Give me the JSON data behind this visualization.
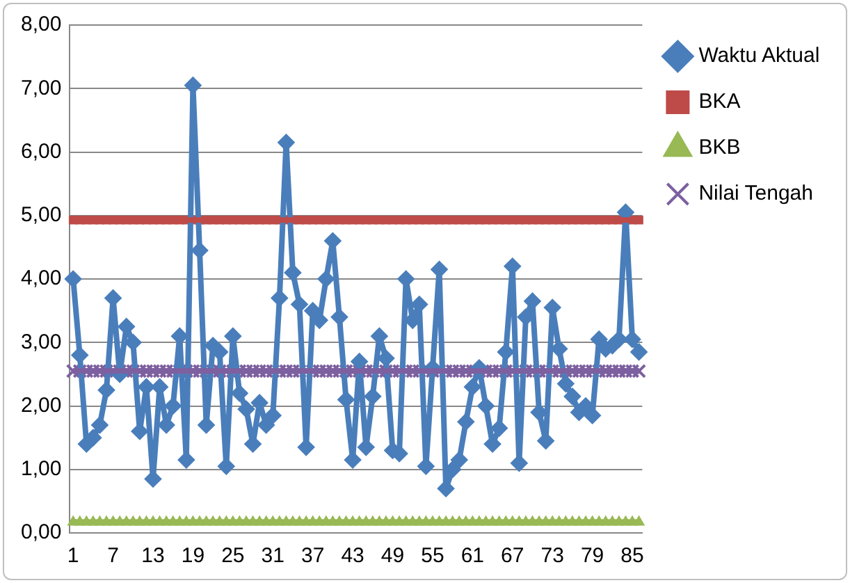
{
  "chart_data": {
    "type": "line",
    "categories": [
      "1",
      null,
      null,
      null,
      null,
      null,
      "7",
      null,
      null,
      null,
      null,
      null,
      "13",
      null,
      null,
      null,
      null,
      null,
      "19",
      null,
      null,
      null,
      null,
      null,
      "25",
      null,
      null,
      null,
      null,
      null,
      "31",
      null,
      null,
      null,
      null,
      null,
      "37",
      null,
      null,
      null,
      null,
      null,
      "43",
      null,
      null,
      null,
      null,
      null,
      "49",
      null,
      null,
      null,
      null,
      null,
      "55",
      null,
      null,
      null,
      null,
      null,
      "61",
      null,
      null,
      null,
      null,
      null,
      "67",
      null,
      null,
      null,
      null,
      null,
      "73",
      null,
      null,
      null,
      null,
      null,
      "79",
      null,
      null,
      null,
      null,
      null,
      "85",
      null
    ],
    "series": [
      {
        "name": "Waktu Aktual",
        "color": "#4a7ebb",
        "marker": "diamond",
        "values": [
          4.0,
          2.8,
          1.4,
          1.5,
          1.7,
          2.25,
          3.7,
          2.5,
          3.25,
          3.0,
          1.6,
          2.3,
          0.85,
          2.3,
          1.7,
          2.0,
          3.1,
          1.15,
          7.05,
          4.45,
          1.7,
          2.95,
          2.85,
          1.05,
          3.1,
          2.2,
          1.95,
          1.4,
          2.05,
          1.7,
          1.85,
          3.7,
          6.15,
          4.1,
          3.6,
          1.35,
          3.5,
          3.35,
          4.0,
          4.6,
          3.4,
          2.1,
          1.15,
          2.7,
          1.35,
          2.15,
          3.1,
          2.75,
          1.3,
          1.25,
          4.0,
          3.35,
          3.6,
          1.05,
          2.6,
          4.15,
          0.7,
          1.0,
          1.15,
          1.75,
          2.3,
          2.6,
          2.0,
          1.4,
          1.65,
          2.85,
          4.2,
          1.1,
          3.4,
          3.65,
          1.9,
          1.45,
          3.55,
          2.9,
          2.35,
          2.15,
          1.9,
          2.0,
          1.85,
          3.05,
          2.9,
          2.95,
          3.05,
          5.05,
          3.05,
          2.85
        ]
      },
      {
        "name": "BKA",
        "color": "#be4b48",
        "marker": "square",
        "values": [
          4.93,
          4.93,
          4.93,
          4.93,
          4.93,
          4.93,
          4.93,
          4.93,
          4.93,
          4.93,
          4.93,
          4.93,
          4.93,
          4.93,
          4.93,
          4.93,
          4.93,
          4.93,
          4.93,
          4.93,
          4.93,
          4.93,
          4.93,
          4.93,
          4.93,
          4.93,
          4.93,
          4.93,
          4.93,
          4.93,
          4.93,
          4.93,
          4.93,
          4.93,
          4.93,
          4.93,
          4.93,
          4.93,
          4.93,
          4.93,
          4.93,
          4.93,
          4.93,
          4.93,
          4.93,
          4.93,
          4.93,
          4.93,
          4.93,
          4.93,
          4.93,
          4.93,
          4.93,
          4.93,
          4.93,
          4.93,
          4.93,
          4.93,
          4.93,
          4.93,
          4.93,
          4.93,
          4.93,
          4.93,
          4.93,
          4.93,
          4.93,
          4.93,
          4.93,
          4.93,
          4.93,
          4.93,
          4.93,
          4.93,
          4.93,
          4.93,
          4.93,
          4.93,
          4.93,
          4.93,
          4.93,
          4.93,
          4.93,
          4.93,
          4.93,
          4.93
        ]
      },
      {
        "name": "BKB",
        "color": "#98b954",
        "marker": "triangle",
        "values": [
          0.17,
          0.17,
          0.17,
          0.17,
          0.17,
          0.17,
          0.17,
          0.17,
          0.17,
          0.17,
          0.17,
          0.17,
          0.17,
          0.17,
          0.17,
          0.17,
          0.17,
          0.17,
          0.17,
          0.17,
          0.17,
          0.17,
          0.17,
          0.17,
          0.17,
          0.17,
          0.17,
          0.17,
          0.17,
          0.17,
          0.17,
          0.17,
          0.17,
          0.17,
          0.17,
          0.17,
          0.17,
          0.17,
          0.17,
          0.17,
          0.17,
          0.17,
          0.17,
          0.17,
          0.17,
          0.17,
          0.17,
          0.17,
          0.17,
          0.17,
          0.17,
          0.17,
          0.17,
          0.17,
          0.17,
          0.17,
          0.17,
          0.17,
          0.17,
          0.17,
          0.17,
          0.17,
          0.17,
          0.17,
          0.17,
          0.17,
          0.17,
          0.17,
          0.17,
          0.17,
          0.17,
          0.17,
          0.17,
          0.17,
          0.17,
          0.17,
          0.17,
          0.17,
          0.17,
          0.17,
          0.17,
          0.17,
          0.17,
          0.17,
          0.17,
          0.17
        ]
      },
      {
        "name": "Nilai Tengah",
        "color": "#7d60a0",
        "marker": "cross",
        "values": [
          2.55,
          2.55,
          2.55,
          2.55,
          2.55,
          2.55,
          2.55,
          2.55,
          2.55,
          2.55,
          2.55,
          2.55,
          2.55,
          2.55,
          2.55,
          2.55,
          2.55,
          2.55,
          2.55,
          2.55,
          2.55,
          2.55,
          2.55,
          2.55,
          2.55,
          2.55,
          2.55,
          2.55,
          2.55,
          2.55,
          2.55,
          2.55,
          2.55,
          2.55,
          2.55,
          2.55,
          2.55,
          2.55,
          2.55,
          2.55,
          2.55,
          2.55,
          2.55,
          2.55,
          2.55,
          2.55,
          2.55,
          2.55,
          2.55,
          2.55,
          2.55,
          2.55,
          2.55,
          2.55,
          2.55,
          2.55,
          2.55,
          2.55,
          2.55,
          2.55,
          2.55,
          2.55,
          2.55,
          2.55,
          2.55,
          2.55,
          2.55,
          2.55,
          2.55,
          2.55,
          2.55,
          2.55,
          2.55,
          2.55,
          2.55,
          2.55,
          2.55,
          2.55,
          2.55,
          2.55,
          2.55,
          2.55,
          2.55,
          2.55,
          2.55,
          2.55
        ]
      }
    ],
    "ylim": [
      0,
      8
    ],
    "yticks": [
      {
        "value": 0,
        "label": "0,00"
      },
      {
        "value": 1,
        "label": "1,00"
      },
      {
        "value": 2,
        "label": "2,00"
      },
      {
        "value": 3,
        "label": "3,00"
      },
      {
        "value": 4,
        "label": "4,00"
      },
      {
        "value": 5,
        "label": "5,00"
      },
      {
        "value": 6,
        "label": "6,00"
      },
      {
        "value": 7,
        "label": "7,00"
      },
      {
        "value": 8,
        "label": "8,00"
      }
    ],
    "grid": "y",
    "legend": "right"
  }
}
